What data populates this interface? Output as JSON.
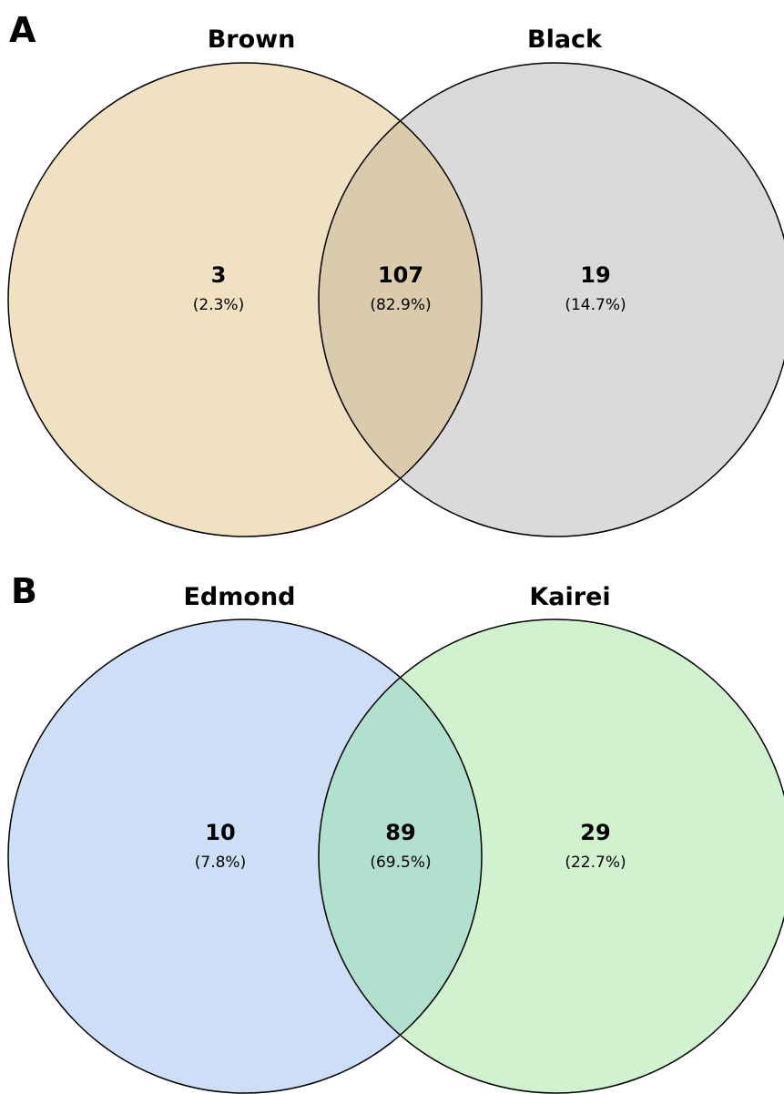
{
  "panels": [
    {
      "letter": "A",
      "left_set": {
        "name": "Brown",
        "color": "#f0e1c2"
      },
      "right_set": {
        "name": "Black",
        "color": "#dadada"
      },
      "intersection_color": "#d9cbac",
      "regions": {
        "left_only": {
          "count": "3",
          "percent": "(2.3%)"
        },
        "both": {
          "count": "107",
          "percent": "(82.9%)"
        },
        "right_only": {
          "count": "19",
          "percent": "(14.7%)"
        }
      }
    },
    {
      "letter": "B",
      "left_set": {
        "name": "Edmond",
        "color": "#cddff6"
      },
      "right_set": {
        "name": "Kairei",
        "color": "#d1f2cf"
      },
      "intersection_color": "#b2e0ce",
      "regions": {
        "left_only": {
          "count": "10",
          "percent": "(7.8%)"
        },
        "both": {
          "count": "89",
          "percent": "(69.5%)"
        },
        "right_only": {
          "count": "29",
          "percent": "(22.7%)"
        }
      }
    }
  ]
}
